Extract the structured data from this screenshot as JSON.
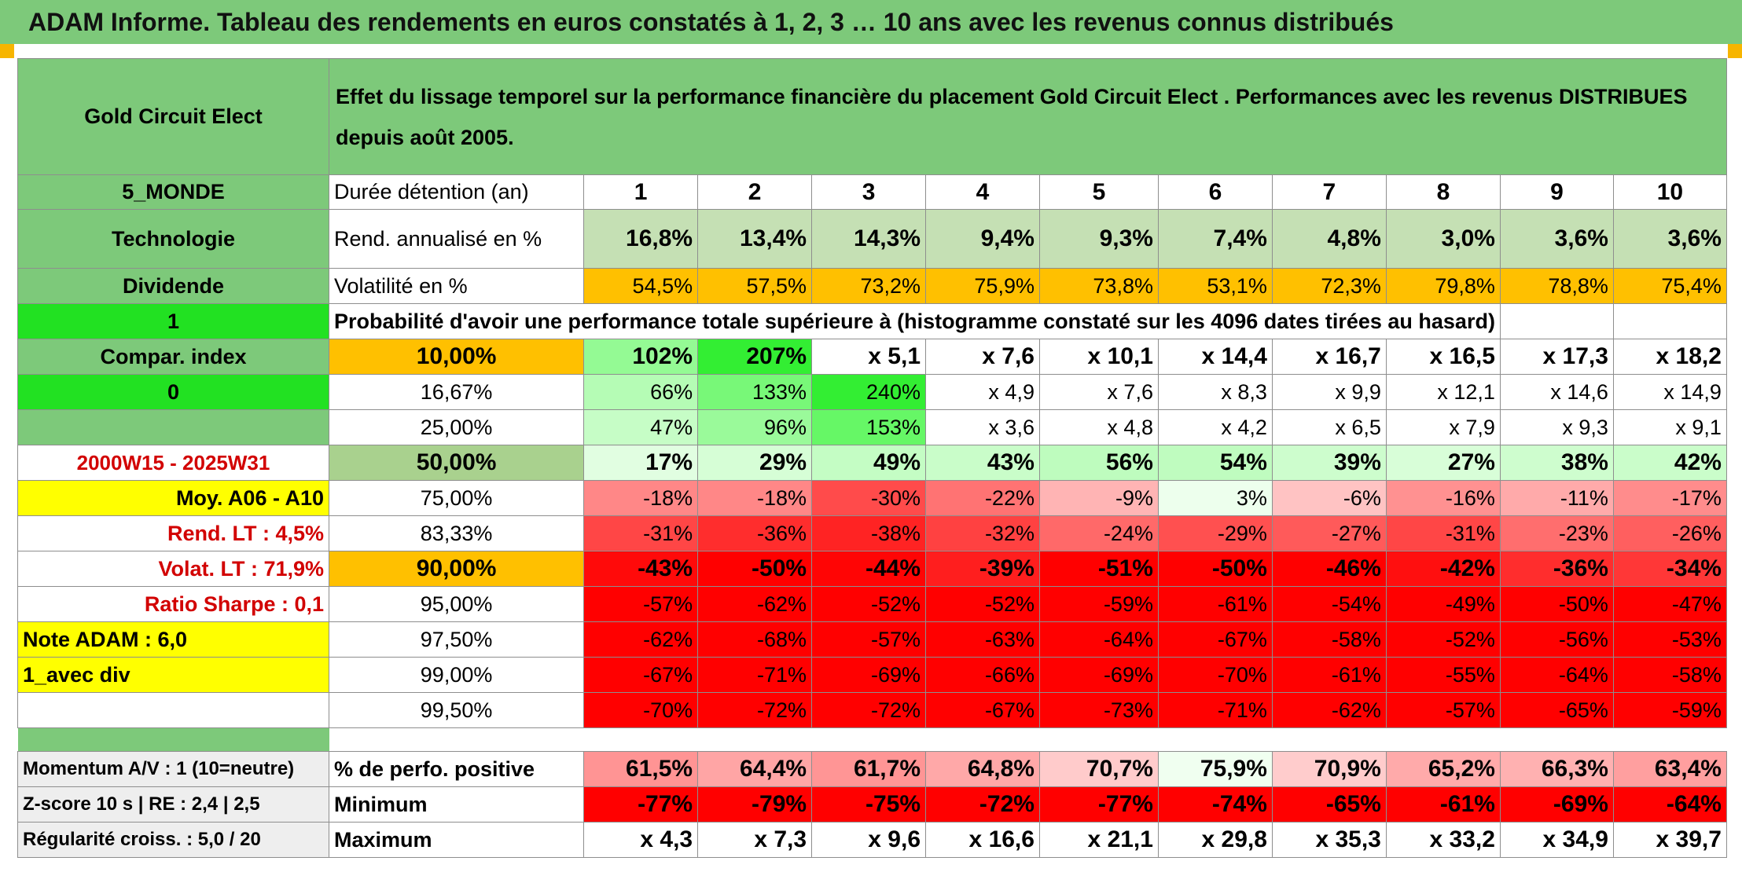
{
  "title": "ADAM Informe. Tableau des rendements en euros constatés à 1, 2, 3 … 10 ans avec les revenus connus distribués",
  "header": {
    "fund_name": "Gold Circuit Elect",
    "description": "Effet du lissage temporel sur la performance financière du placement Gold Circuit Elect . Performances avec les revenus DISTRIBUES depuis août 2005."
  },
  "left_panel": {
    "zone": "5_MONDE",
    "sector": "Technologie",
    "dividend_label": "Dividende",
    "dividend_value": "1",
    "compar_label": "Compar. index",
    "compar_value": "0",
    "period": "2000W15 - 2025W31",
    "moy": "Moy. A06 - A10",
    "rend_lt": "Rend. LT :    4,5%",
    "volat_lt": "Volat. LT :   71,9%",
    "sharpe": "Ratio Sharpe :    0,1",
    "note": "Note ADAM : 6,0",
    "mode": "1_avec div"
  },
  "table": {
    "holding_label": "Durée détention (an)",
    "years": [
      "1",
      "2",
      "3",
      "4",
      "5",
      "6",
      "7",
      "8",
      "9",
      "10"
    ],
    "rend_label": "Rend. annualisé en %",
    "rend": [
      "16,8%",
      "13,4%",
      "14,3%",
      "9,4%",
      "9,3%",
      "7,4%",
      "4,8%",
      "3,0%",
      "3,6%",
      "3,6%"
    ],
    "vol_label": "Volatilité en %",
    "vol": [
      "54,5%",
      "57,5%",
      "73,2%",
      "75,9%",
      "73,8%",
      "53,1%",
      "72,3%",
      "79,8%",
      "78,8%",
      "75,4%"
    ],
    "prob_label": "Probabilité d'avoir une performance totale supérieure à (histogramme constaté sur les 4096 dates tirées au hasard)",
    "rows": [
      {
        "p": "10,00%",
        "v": [
          "102%",
          "207%",
          "x 5,1",
          "x 7,6",
          "x 10,1",
          "x 14,4",
          "x 16,7",
          "x 16,5",
          "x 17,3",
          "x 18,2"
        ]
      },
      {
        "p": "16,67%",
        "v": [
          "66%",
          "133%",
          "240%",
          "x 4,9",
          "x 7,6",
          "x 8,3",
          "x 9,9",
          "x 12,1",
          "x 14,6",
          "x 14,9"
        ]
      },
      {
        "p": "25,00%",
        "v": [
          "47%",
          "96%",
          "153%",
          "x 3,6",
          "x 4,8",
          "x 4,2",
          "x 6,5",
          "x 7,9",
          "x 9,3",
          "x 9,1"
        ]
      },
      {
        "p": "50,00%",
        "v": [
          "17%",
          "29%",
          "49%",
          "43%",
          "56%",
          "54%",
          "39%",
          "27%",
          "38%",
          "42%"
        ]
      },
      {
        "p": "75,00%",
        "v": [
          "-18%",
          "-18%",
          "-30%",
          "-22%",
          "-9%",
          "3%",
          "-6%",
          "-16%",
          "-11%",
          "-17%"
        ]
      },
      {
        "p": "83,33%",
        "v": [
          "-31%",
          "-36%",
          "-38%",
          "-32%",
          "-24%",
          "-29%",
          "-27%",
          "-31%",
          "-23%",
          "-26%"
        ]
      },
      {
        "p": "90,00%",
        "v": [
          "-43%",
          "-50%",
          "-44%",
          "-39%",
          "-51%",
          "-50%",
          "-46%",
          "-42%",
          "-36%",
          "-34%"
        ]
      },
      {
        "p": "95,00%",
        "v": [
          "-57%",
          "-62%",
          "-52%",
          "-52%",
          "-59%",
          "-61%",
          "-54%",
          "-49%",
          "-50%",
          "-47%"
        ]
      },
      {
        "p": "97,50%",
        "v": [
          "-62%",
          "-68%",
          "-57%",
          "-63%",
          "-64%",
          "-67%",
          "-58%",
          "-52%",
          "-56%",
          "-53%"
        ]
      },
      {
        "p": "99,00%",
        "v": [
          "-67%",
          "-71%",
          "-69%",
          "-66%",
          "-69%",
          "-70%",
          "-61%",
          "-55%",
          "-64%",
          "-58%"
        ]
      },
      {
        "p": "99,50%",
        "v": [
          "-70%",
          "-72%",
          "-72%",
          "-67%",
          "-73%",
          "-71%",
          "-62%",
          "-57%",
          "-65%",
          "-59%"
        ]
      }
    ],
    "bottom": [
      {
        "lab": "Momentum A/V : 1 (10=neutre)",
        "name": "% de perfo. positive",
        "v": [
          "61,5%",
          "64,4%",
          "61,7%",
          "64,8%",
          "70,7%",
          "75,9%",
          "70,9%",
          "65,2%",
          "66,3%",
          "63,4%"
        ]
      },
      {
        "lab": "Z-score 10 s | RE : 2,4 | 2,5",
        "name": "Minimum",
        "v": [
          "-77%",
          "-79%",
          "-75%",
          "-72%",
          "-77%",
          "-74%",
          "-65%",
          "-61%",
          "-69%",
          "-64%"
        ]
      },
      {
        "lab": "Régularité croiss. : 5,0 / 20",
        "name": "Maximum",
        "v": [
          "x 4,3",
          "x 7,3",
          "x 9,6",
          "x 16,6",
          "x 21,1",
          "x 29,8",
          "x 35,3",
          "x 33,2",
          "x 34,9",
          "x 39,7"
        ]
      }
    ]
  },
  "colors": {
    "header_green": "#7dc97a",
    "bright_green": "#22e122",
    "orange": "#ffc000",
    "yellow": "#ffff00",
    "red_text": "#d20000"
  }
}
